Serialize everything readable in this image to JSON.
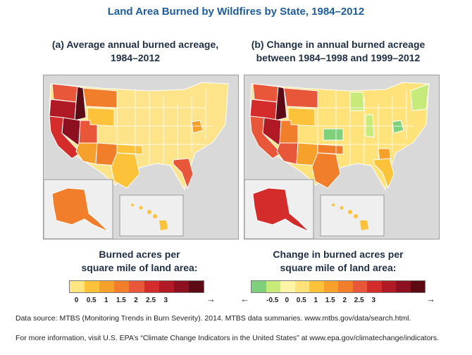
{
  "title": "Land Area Burned by Wildfires by State, 1984–2012",
  "panel_a": {
    "title_line1": "(a) Average annual burned acreage,",
    "title_line2": "1984–2012",
    "legend_line1": "Burned acres per",
    "legend_line2": "square mile of land area:",
    "legend_colors": [
      "#ffe680",
      "#fcc33a",
      "#f7a12d",
      "#f07e2b",
      "#e8573a",
      "#d42b2b",
      "#b01a24",
      "#8c1020",
      "#5c0a14"
    ],
    "ticks": [
      "0",
      "0.5",
      "1",
      "1.5",
      "2",
      "2.5",
      "3"
    ]
  },
  "panel_b": {
    "title_line1": "(b) Change in annual burned acreage",
    "title_line2": "between 1984–1998 and 1999–2012",
    "legend_line1": "Change in burned acres per",
    "legend_line2": "square mile of land area:",
    "legend_colors": [
      "#7fd07a",
      "#c7eb7a",
      "#fff5a8",
      "#ffe27a",
      "#fcc33a",
      "#f7a12d",
      "#f07e2b",
      "#e8573a",
      "#d42b2b",
      "#b01a24",
      "#8c1020",
      "#5c0a14"
    ],
    "ticks": [
      "-0.5",
      "0",
      "0.5",
      "1",
      "1.5",
      "2",
      "2.5",
      "3"
    ]
  },
  "colors": {
    "water": "#d9d9d9",
    "state_border": "#ffffff",
    "title_blue": "#1d5d9b"
  },
  "footer": {
    "source": "Data source: MTBS (Monitoring Trends in Burn Severity). 2014. MTBS data summaries. www.mtbs.gov/data/search.html.",
    "more_info": "For more information, visit U.S. EPA’s “Climate Change Indicators in the United States” at www.epa.gov/climatechange/indicators."
  }
}
